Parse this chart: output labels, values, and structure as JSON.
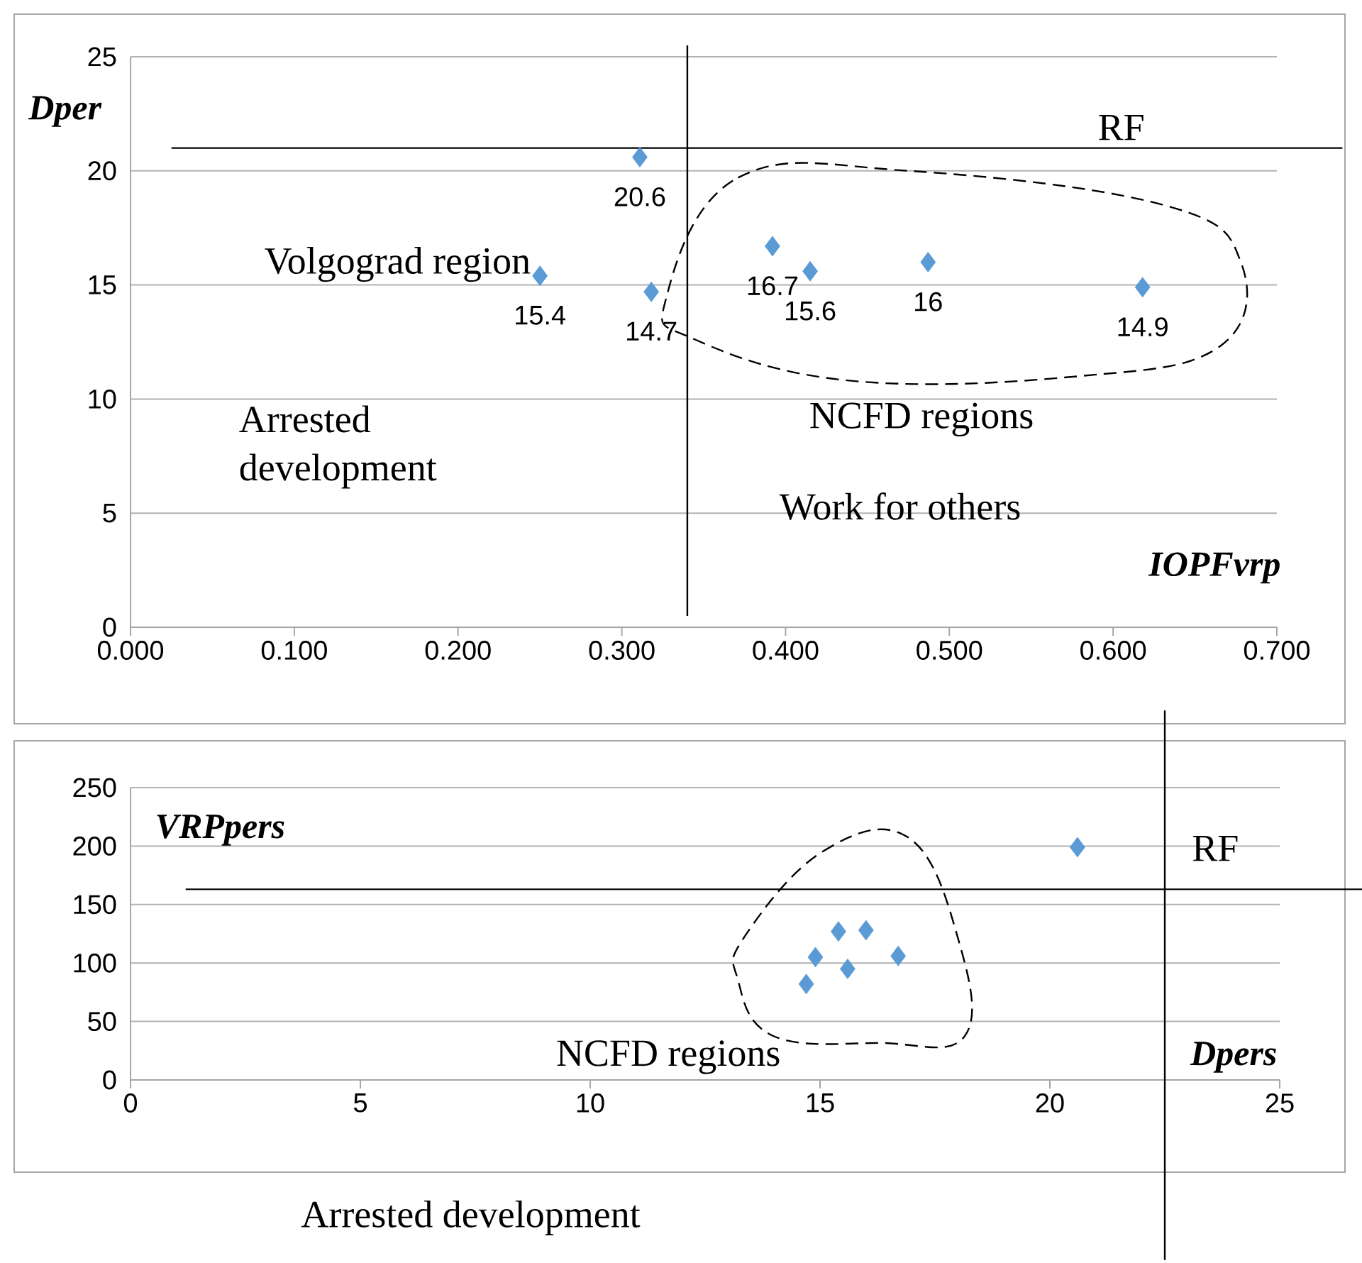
{
  "chart_data": [
    {
      "type": "scatter",
      "xlabel": "IOPFvrp",
      "ylabel": "Dper",
      "x": [
        0.311,
        0.25,
        0.318,
        0.392,
        0.415,
        0.487,
        0.618
      ],
      "values": [
        20.6,
        15.4,
        14.7,
        16.7,
        15.6,
        16,
        14.9
      ],
      "color": "#5b9bd5",
      "marker": "diamond",
      "data_labels": true,
      "xlim": [
        0,
        0.7
      ],
      "ylim": [
        0,
        25
      ],
      "xticks": [
        {
          "value": 0,
          "label": "0.000"
        },
        {
          "value": 0.1,
          "label": "0.100"
        },
        {
          "value": 0.2,
          "label": "0.200"
        },
        {
          "value": 0.3,
          "label": "0.300"
        },
        {
          "value": 0.4,
          "label": "0.400"
        },
        {
          "value": 0.5,
          "label": "0.500"
        },
        {
          "value": 0.6,
          "label": "0.600"
        },
        {
          "value": 0.7,
          "label": "0.700"
        }
      ],
      "yticks": [
        0,
        5,
        10,
        15,
        20,
        25
      ],
      "grid": "y",
      "ref_lines": [
        {
          "axis": "y",
          "value": 21,
          "color": "#000000"
        },
        {
          "axis": "x",
          "value": 0.34,
          "color": "#000000"
        }
      ],
      "annotations": [
        "RF",
        "Volgograd region",
        "Arrested development",
        "NCFD regions",
        "Work for others"
      ]
    },
    {
      "type": "scatter",
      "xlabel": "Dpers",
      "ylabel": "VRPpers",
      "x": [
        14.7,
        14.9,
        15.4,
        15.6,
        16,
        16.7,
        20.6
      ],
      "values": [
        82,
        105,
        127,
        95,
        128,
        106,
        199
      ],
      "color": "#5b9bd5",
      "marker": "diamond",
      "xlim": [
        0,
        25
      ],
      "ylim": [
        0,
        250
      ],
      "xticks": [
        0,
        5,
        10,
        15,
        20,
        25
      ],
      "yticks": [
        0,
        50,
        100,
        150,
        200,
        250
      ],
      "grid": "y",
      "ref_lines": [
        {
          "axis": "y",
          "value": 163,
          "color": "#000000"
        },
        {
          "axis": "x",
          "value": 22.5,
          "color": "#000000"
        }
      ],
      "annotations": [
        "RF",
        "NCFD regions",
        "Arrested development"
      ]
    }
  ]
}
